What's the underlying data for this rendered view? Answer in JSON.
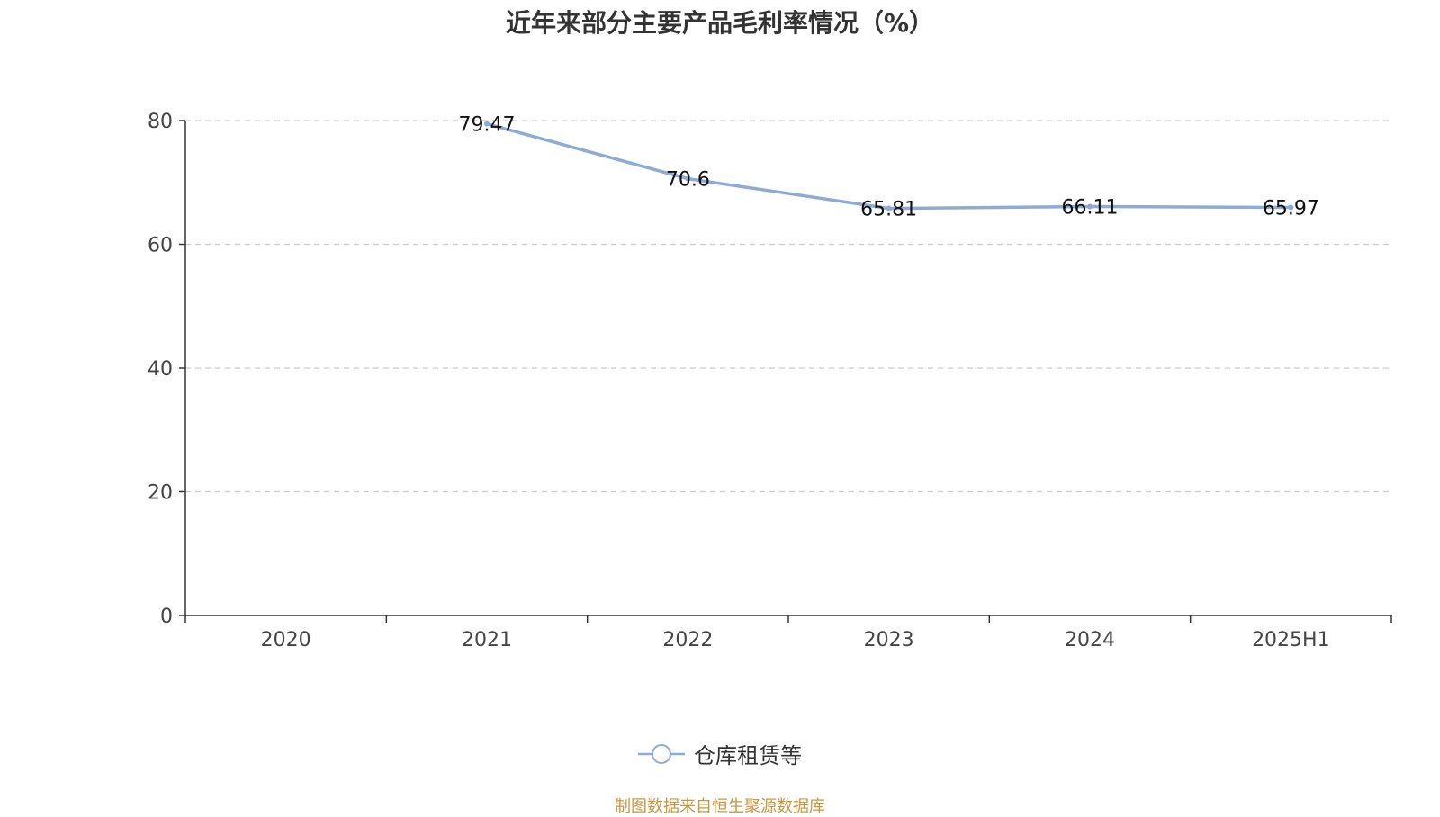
{
  "chart_data": {
    "type": "line",
    "title": "近年来部分主要产品毛利率情况（%）",
    "categories": [
      "2020",
      "2021",
      "2022",
      "2023",
      "2024",
      "2025H1"
    ],
    "series": [
      {
        "name": "仓库租赁等",
        "values": [
          null,
          79.47,
          70.6,
          65.81,
          66.11,
          65.97
        ],
        "labels": [
          "",
          "79.47",
          "70.6",
          "65.81",
          "66.11",
          "65.97"
        ],
        "color": "#8eabd6"
      }
    ],
    "yticks": [
      "0",
      "20",
      "40",
      "60",
      "80"
    ],
    "ylim": [
      0,
      80
    ],
    "grid": true,
    "legend_position": "bottom-center"
  },
  "footer": {
    "source": "制图数据来自恒生聚源数据库",
    "source_color": "#c9963e"
  }
}
